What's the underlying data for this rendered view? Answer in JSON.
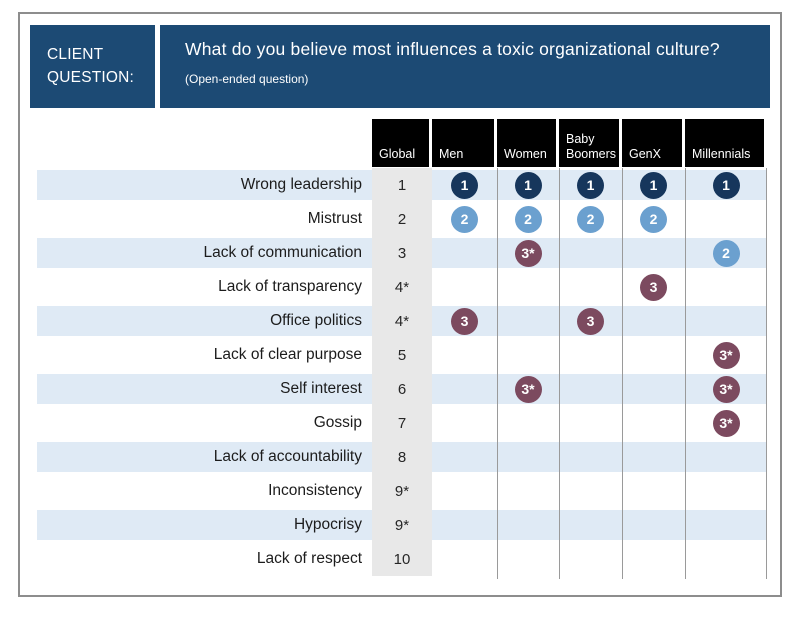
{
  "palette": {
    "banner_navy": "#1c4a74",
    "rank1": "#16365c",
    "rank2": "#6ba0cf",
    "rank3": "#7c4a5f",
    "row_band_blue": "#dfeaf5",
    "global_column_gray": "#e8e8e8",
    "header_box_black": "#000000",
    "grid_line_gray": "#9a9a9a"
  },
  "header": {
    "client_label": "CLIENT QUESTION:",
    "question": "What do you believe most influences a toxic organizational culture?",
    "note": "(Open-ended question)"
  },
  "chart_data": {
    "type": "table",
    "title": "What do you believe most influences a toxic organizational culture?",
    "subtitle": "(Open-ended question)",
    "columns": [
      "Global",
      "Men",
      "Women",
      "Baby Boomers",
      "GenX",
      "Millennials"
    ],
    "rows": [
      {
        "factor": "Wrong leadership",
        "global": "1",
        "men": "1",
        "women": "1",
        "baby_boomers": "1",
        "genx": "1",
        "millennials": "1"
      },
      {
        "factor": "Mistrust",
        "global": "2",
        "men": "2",
        "women": "2",
        "baby_boomers": "2",
        "genx": "2",
        "millennials": ""
      },
      {
        "factor": "Lack of communication",
        "global": "3",
        "men": "",
        "women": "3*",
        "baby_boomers": "",
        "genx": "",
        "millennials": "2"
      },
      {
        "factor": "Lack of transparency",
        "global": "4*",
        "men": "",
        "women": "",
        "baby_boomers": "",
        "genx": "3",
        "millennials": ""
      },
      {
        "factor": "Office politics",
        "global": "4*",
        "men": "3",
        "women": "",
        "baby_boomers": "3",
        "genx": "",
        "millennials": ""
      },
      {
        "factor": "Lack of clear purpose",
        "global": "5",
        "men": "",
        "women": "",
        "baby_boomers": "",
        "genx": "",
        "millennials": "3*"
      },
      {
        "factor": "Self interest",
        "global": "6",
        "men": "",
        "women": "3*",
        "baby_boomers": "",
        "genx": "",
        "millennials": "3*"
      },
      {
        "factor": "Gossip",
        "global": "7",
        "men": "",
        "women": "",
        "baby_boomers": "",
        "genx": "",
        "millennials": "3*"
      },
      {
        "factor": "Lack of accountability",
        "global": "8",
        "men": "",
        "women": "",
        "baby_boomers": "",
        "genx": "",
        "millennials": ""
      },
      {
        "factor": "Inconsistency",
        "global": "9*",
        "men": "",
        "women": "",
        "baby_boomers": "",
        "genx": "",
        "millennials": ""
      },
      {
        "factor": "Hypocrisy",
        "global": "9*",
        "men": "",
        "women": "",
        "baby_boomers": "",
        "genx": "",
        "millennials": ""
      },
      {
        "factor": "Lack of respect",
        "global": "10",
        "men": "",
        "women": "",
        "baby_boomers": "",
        "genx": "",
        "millennials": ""
      }
    ]
  }
}
